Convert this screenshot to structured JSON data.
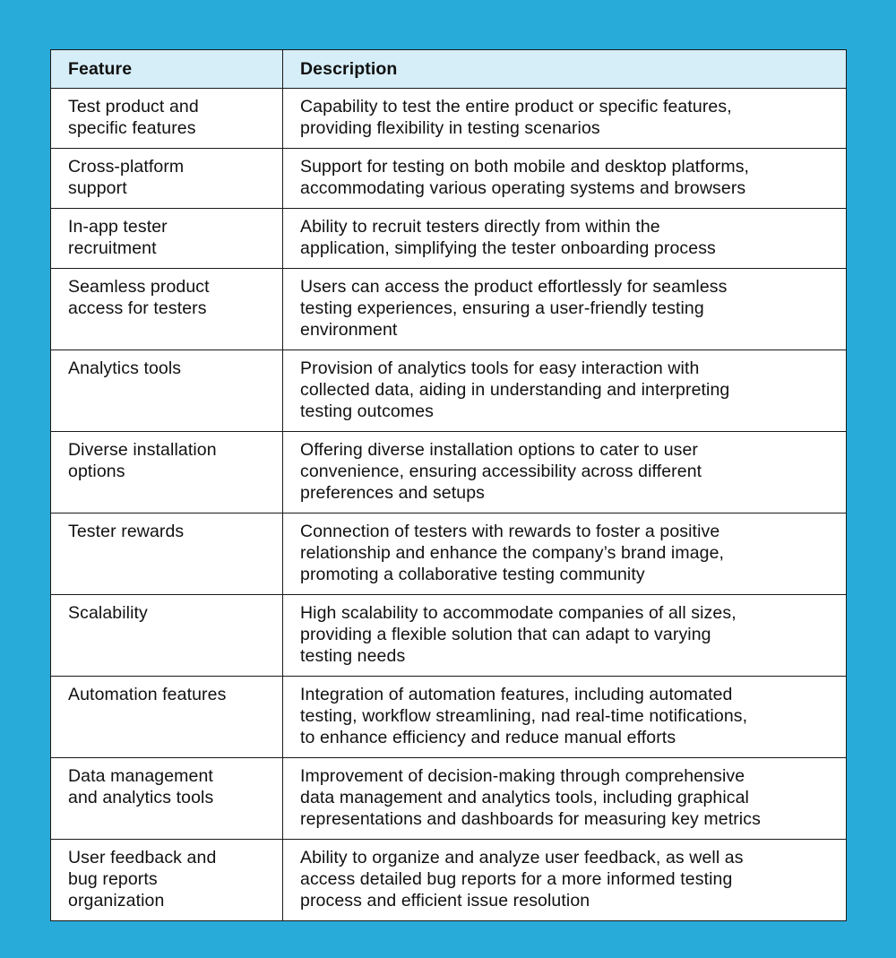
{
  "colors": {
    "background": "#29ABD9",
    "header_bg": "#D6EEF8",
    "border": "#1a1a1a"
  },
  "header": {
    "feature": "Feature",
    "description": "Description"
  },
  "rows": [
    {
      "feature": [
        "Test product and",
        "specific features"
      ],
      "description": [
        "Capability to test the entire product or specific features,",
        "providing flexibility in testing scenarios"
      ]
    },
    {
      "feature": [
        "Cross-platform",
        "support"
      ],
      "description": [
        "Support for testing on both mobile and desktop platforms,",
        "accommodating various operating systems and browsers"
      ]
    },
    {
      "feature": [
        "In-app tester",
        "recruitment"
      ],
      "description": [
        "Ability to recruit testers directly from within the",
        "application, simplifying the tester onboarding process"
      ]
    },
    {
      "feature": [
        "Seamless product",
        "access for testers"
      ],
      "description": [
        "Users can access the product effortlessly for seamless",
        "testing experiences, ensuring a user-friendly testing",
        "environment"
      ]
    },
    {
      "feature": [
        "Analytics tools"
      ],
      "description": [
        "Provision of analytics tools for easy interaction with",
        "collected data, aiding in understanding and interpreting",
        "testing outcomes"
      ]
    },
    {
      "feature": [
        "Diverse installation",
        "options"
      ],
      "description": [
        "Offering diverse installation options to cater to user",
        "convenience, ensuring accessibility across different",
        "preferences and setups"
      ]
    },
    {
      "feature": [
        "Tester rewards"
      ],
      "description": [
        "Connection of testers with rewards to foster a positive",
        "relationship and enhance the company’s brand image,",
        "promoting a collaborative testing community"
      ]
    },
    {
      "feature": [
        "Scalability"
      ],
      "description": [
        "High scalability to accommodate companies of all sizes,",
        "providing a flexible solution that can adapt to varying",
        "testing needs"
      ]
    },
    {
      "feature": [
        "Automation features"
      ],
      "description": [
        "Integration of automation features, including automated",
        "testing, workflow streamlining, nad real-time notifications,",
        "to enhance efficiency and reduce manual efforts"
      ]
    },
    {
      "feature": [
        "Data management",
        "and analytics tools"
      ],
      "description": [
        "Improvement of decision-making through comprehensive",
        "data management and analytics tools, including graphical",
        "representations and dashboards for measuring key metrics"
      ]
    },
    {
      "feature": [
        "User feedback and",
        "bug reports",
        "organization"
      ],
      "description": [
        "Ability to organize and analyze user feedback, as well as",
        "access detailed bug reports for a more informed testing",
        "process and efficient issue resolution"
      ]
    }
  ]
}
